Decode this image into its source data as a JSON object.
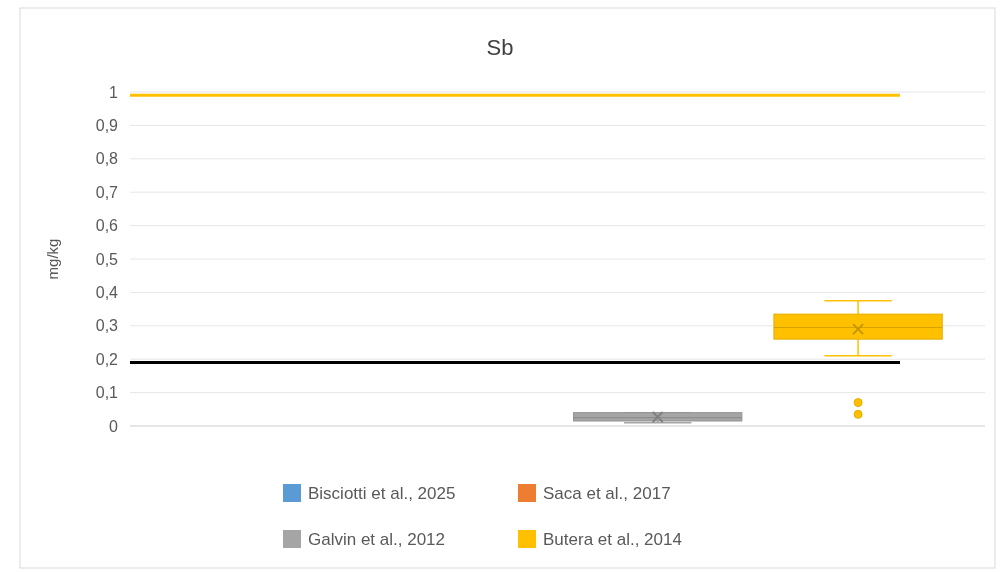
{
  "chart_data": {
    "type": "box",
    "title": "Sb",
    "ylabel": "mg/kg",
    "categories": [
      null
    ],
    "series": [
      {
        "name": "Bisciotti et al., 2025",
        "color": "#5b9bd5",
        "boxes": [
          null
        ]
      },
      {
        "name": "Saca et al., 2017",
        "color": "#ed7d31",
        "boxes": [
          null
        ]
      },
      {
        "name": "Galvin et al., 2012",
        "color": "#a5a5a5",
        "boxes": [
          {
            "low": 0.01,
            "q1": 0.015,
            "median": 0.025,
            "q3": 0.04,
            "high": 0.04,
            "mean": 0.027
          }
        ]
      },
      {
        "name": "Butera et al., 2014",
        "color": "#ffc000",
        "boxes": [
          {
            "low": 0.21,
            "q1": 0.26,
            "median": 0.295,
            "q3": 0.335,
            "high": 0.375,
            "mean": 0.29,
            "outliers": [
              0.07,
              0.035
            ]
          }
        ]
      }
    ],
    "ylim": [
      0,
      1
    ],
    "yticks": [
      0,
      {
        "value": 0.1,
        "label": "0,1"
      },
      {
        "value": 0.2,
        "label": "0,2"
      },
      {
        "value": 0.3,
        "label": "0,3"
      },
      {
        "value": 0.4,
        "label": "0,4"
      },
      {
        "value": 0.5,
        "label": "0,5"
      },
      {
        "value": 0.6,
        "label": "0,6"
      },
      {
        "value": 0.7,
        "label": "0,7"
      },
      {
        "value": 0.8,
        "label": "0,8"
      },
      {
        "value": 0.9,
        "label": "0,9"
      },
      1
    ],
    "ref_lines": [
      {
        "axis": "y",
        "value": 0.99,
        "color": "#ffc000"
      },
      {
        "axis": "y",
        "value": 0.19,
        "color": "#000000"
      }
    ],
    "grid": "y",
    "legend": "bottom"
  }
}
